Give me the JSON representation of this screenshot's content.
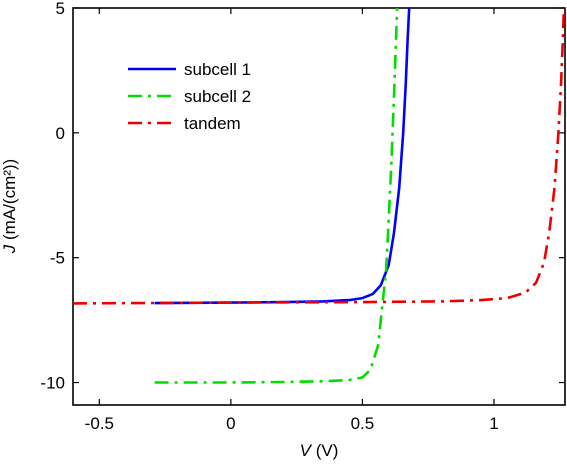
{
  "chart_data": {
    "type": "line",
    "xlabel_var": "V",
    "xlabel_unit": " (V)",
    "ylabel_var": "J",
    "ylabel_unit": " (mA/(cm²))",
    "xlim": [
      -0.6,
      1.27
    ],
    "ylim": [
      -10.9,
      5
    ],
    "xticks": [
      -0.5,
      0,
      0.5,
      1
    ],
    "xtick_labels": [
      "-0.5",
      "0",
      "0.5",
      "1"
    ],
    "yticks": [
      -10,
      -5,
      0,
      5
    ],
    "ytick_labels": [
      "-10",
      "-5",
      "0",
      "5"
    ],
    "grid": false,
    "legend_position": "top-left",
    "series": [
      {
        "name": "subcell 1",
        "color": "#0000ff",
        "dash": "solid",
        "points": [
          [
            -0.29,
            -6.82
          ],
          [
            0,
            -6.8
          ],
          [
            0.2,
            -6.78
          ],
          [
            0.35,
            -6.75
          ],
          [
            0.45,
            -6.7
          ],
          [
            0.5,
            -6.62
          ],
          [
            0.54,
            -6.45
          ],
          [
            0.57,
            -6.1
          ],
          [
            0.6,
            -5.3
          ],
          [
            0.62,
            -4.0
          ],
          [
            0.64,
            -2.2
          ],
          [
            0.655,
            0.0
          ],
          [
            0.665,
            2.0
          ],
          [
            0.672,
            3.8
          ],
          [
            0.678,
            5.0
          ]
        ]
      },
      {
        "name": "subcell 2",
        "color": "#00dd00",
        "dash": "dash-dot",
        "points": [
          [
            -0.29,
            -10.0
          ],
          [
            0,
            -10.0
          ],
          [
            0.2,
            -9.98
          ],
          [
            0.35,
            -9.95
          ],
          [
            0.45,
            -9.9
          ],
          [
            0.5,
            -9.8
          ],
          [
            0.53,
            -9.5
          ],
          [
            0.56,
            -8.5
          ],
          [
            0.575,
            -7.0
          ],
          [
            0.59,
            -5.5
          ],
          [
            0.6,
            -3.5
          ],
          [
            0.61,
            -1.2
          ],
          [
            0.62,
            1.5
          ],
          [
            0.628,
            3.8
          ],
          [
            0.632,
            5.0
          ]
        ]
      },
      {
        "name": "tandem",
        "color": "#ee0000",
        "dash": "dash-dot",
        "points": [
          [
            -0.6,
            -6.83
          ],
          [
            0,
            -6.8
          ],
          [
            0.5,
            -6.78
          ],
          [
            0.8,
            -6.75
          ],
          [
            0.95,
            -6.7
          ],
          [
            1.05,
            -6.62
          ],
          [
            1.12,
            -6.4
          ],
          [
            1.16,
            -6.0
          ],
          [
            1.19,
            -5.2
          ],
          [
            1.21,
            -4.0
          ],
          [
            1.23,
            -2.2
          ],
          [
            1.245,
            0.0
          ],
          [
            1.255,
            2.0
          ],
          [
            1.262,
            3.8
          ],
          [
            1.266,
            5.0
          ]
        ]
      }
    ]
  }
}
